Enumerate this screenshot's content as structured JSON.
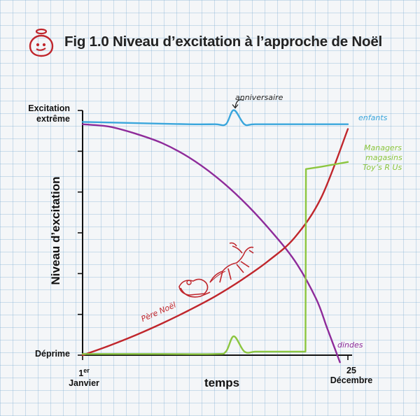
{
  "header": {
    "title": "Fig 1.0 Niveau d’excitation à l’approche de Noël"
  },
  "colors": {
    "enfants": "#3aa6dc",
    "dindes": "#8e2b9a",
    "pere_noel": "#c0262c",
    "managers": "#8cc63f",
    "axis": "#111111",
    "logo": "#c0262c"
  },
  "chart_data": {
    "type": "line",
    "title": "Fig 1.0 Niveau d’excitation à l’approche de Noël",
    "xlabel": "temps",
    "ylabel": "Niveau d’excitation",
    "x_ticks": [
      {
        "x": 0,
        "label_main": "1",
        "label_sup": "er",
        "label_line2": "Janvier"
      },
      {
        "x": 100,
        "label_main": "25",
        "label_sup": "",
        "label_line2": "Décembre"
      }
    ],
    "y_ticks": [
      {
        "y": 0,
        "label": "Déprime"
      },
      {
        "y": 100,
        "label": "Excitation extrême"
      }
    ],
    "xlim": [
      0,
      100
    ],
    "ylim": [
      0,
      100
    ],
    "grid": true,
    "series": [
      {
        "name": "enfants",
        "color": "#3aa6dc",
        "x": [
          0,
          20,
          40,
          50,
          54,
          57,
          61,
          65,
          80,
          100
        ],
        "y": [
          99,
          98.5,
          98,
          98,
          98,
          104,
          98,
          98,
          98,
          98
        ]
      },
      {
        "name": "dindes",
        "color": "#8e2b9a",
        "x": [
          0,
          10,
          20,
          30,
          40,
          50,
          60,
          70,
          80,
          88,
          92,
          95,
          97
        ],
        "y": [
          98,
          97,
          94,
          90,
          84,
          76,
          66,
          54,
          40,
          24,
          12,
          3,
          -3
        ]
      },
      {
        "name": "Père Noël",
        "color": "#c0262c",
        "x": [
          0,
          10,
          20,
          30,
          40,
          50,
          60,
          70,
          80,
          90,
          100
        ],
        "y": [
          0,
          4,
          8.5,
          13.5,
          19,
          25,
          32,
          40,
          50,
          67,
          96
        ]
      },
      {
        "name": "Managers magasins Toy’s R Us",
        "color": "#8cc63f",
        "x": [
          0,
          10,
          30,
          50,
          54,
          57,
          61,
          65,
          70,
          80,
          84,
          84.2,
          90,
          100
        ],
        "y": [
          0.5,
          0.5,
          0.5,
          0.5,
          1.5,
          8,
          1.5,
          1.5,
          1.5,
          1.5,
          1.5,
          79,
          80,
          82
        ]
      }
    ],
    "annotations": [
      {
        "text": "anniversaire",
        "target_series": "enfants",
        "x": 57
      },
      {
        "text": "enfants",
        "target_series": "enfants"
      },
      {
        "text": "dindes",
        "target_series": "dindes"
      },
      {
        "text": "Père Noël",
        "target_series": "Père Noël"
      },
      {
        "text": "Managers",
        "target_series": "Managers magasins Toy’s R Us"
      },
      {
        "text": "magasins",
        "target_series": "Managers magasins Toy’s R Us"
      },
      {
        "text": "Toy’s R Us",
        "target_series": "Managers magasins Toy’s R Us"
      }
    ]
  }
}
